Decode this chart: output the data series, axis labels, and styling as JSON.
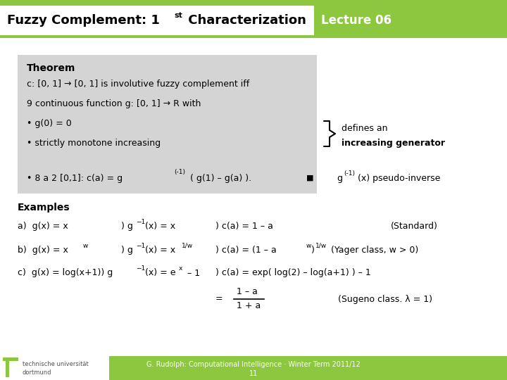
{
  "title_part1": "Fuzzy Complement: 1",
  "title_sup": "st",
  "title_part2": " Characterization",
  "lecture": "Lecture 06",
  "bg_color": "#ffffff",
  "green": "#8dc63f",
  "gray_box": "#d4d4d4",
  "footer_text": "G. Rudolph: Computational Intelligence · Winter Term 2011/12",
  "page_number": "11"
}
